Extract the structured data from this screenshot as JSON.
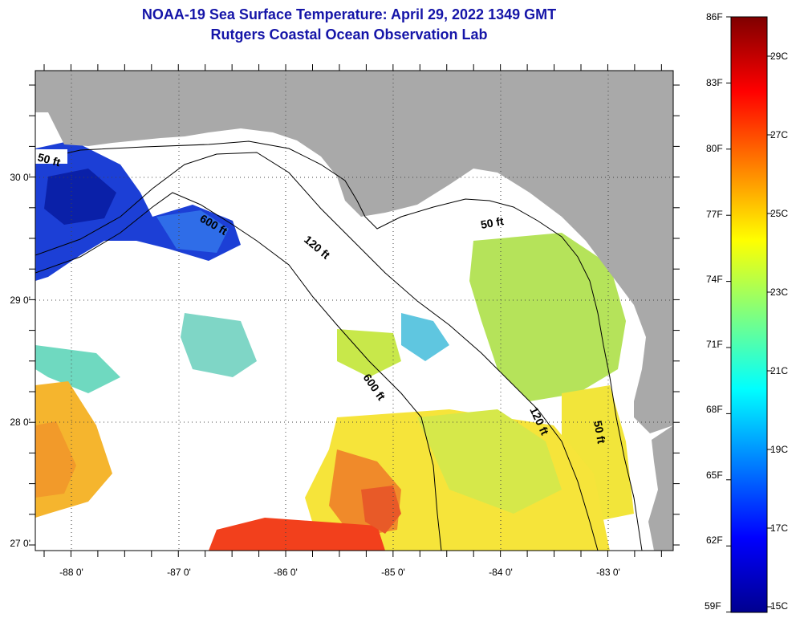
{
  "title": {
    "line1": "NOAA-19 Sea Surface Temperature:  April 29, 2022 1349 GMT",
    "line2": "Rutgers Coastal Ocean Observation Lab"
  },
  "map": {
    "lat_labels": [
      "30 0'",
      "29 0'",
      "28 0'",
      "27 0'"
    ],
    "lon_labels": [
      "-88 0'",
      "-87 0'",
      "-86 0'",
      "-85 0'",
      "-84 0'",
      "-83 0'"
    ],
    "contour_labels": {
      "c50_west": "50 ft",
      "c600_upper": "600 ft",
      "c120_upper": "120 ft",
      "c50_upper": "50 ft",
      "c600_lower": "600 ft",
      "c120_lower": "120 ft",
      "c50_lower": "50 ft"
    },
    "colors": {
      "land": "#a9a9a9",
      "cloud": "#ffffff",
      "contour": "#000000"
    }
  },
  "colorbar": {
    "fahrenheit": [
      "86F",
      "83F",
      "80F",
      "77F",
      "74F",
      "71F",
      "68F",
      "65F",
      "62F",
      "59F"
    ],
    "celsius": [
      "29C",
      "27C",
      "25C",
      "23C",
      "21C",
      "19C",
      "17C",
      "15C"
    ],
    "stops": [
      "#00008f",
      "#0000ff",
      "#007fff",
      "#00ffff",
      "#7fff7f",
      "#ffff00",
      "#ff7f00",
      "#ff0000",
      "#7f0000"
    ]
  }
}
